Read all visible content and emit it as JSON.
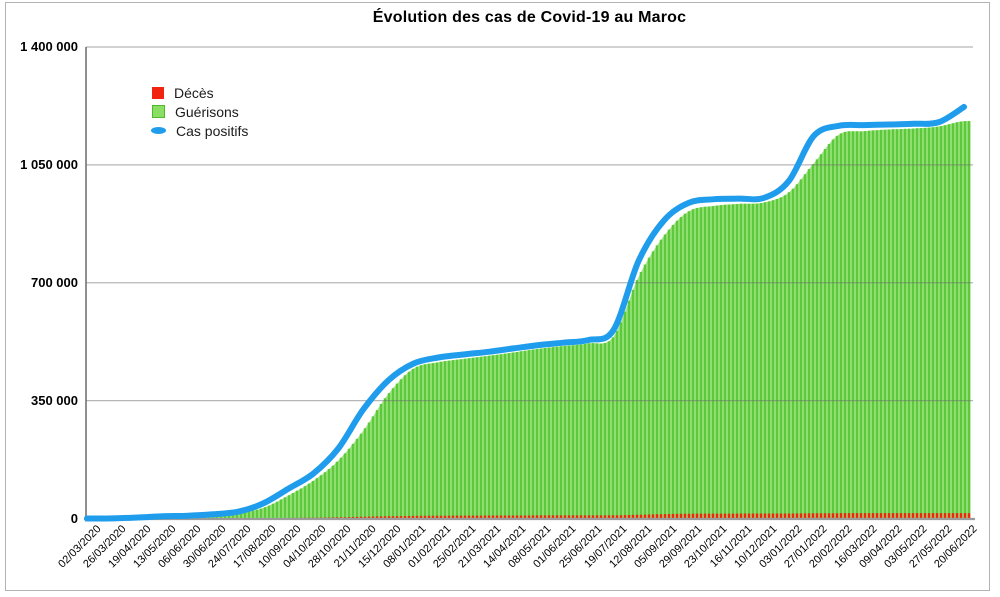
{
  "window": {
    "background": "#ffffff",
    "border_color": "#b3b3b3"
  },
  "chart_data": {
    "type": "combo",
    "title": "Évolution des cas de Covid-19 au Maroc",
    "categories": [
      "02/03/2020",
      "26/03/2020",
      "19/04/2020",
      "13/05/2020",
      "06/06/2020",
      "30/06/2020",
      "24/07/2020",
      "17/08/2020",
      "10/09/2020",
      "04/10/2020",
      "28/10/2020",
      "21/11/2020",
      "15/12/2020",
      "08/01/2021",
      "01/02/2021",
      "25/02/2021",
      "21/03/2021",
      "14/04/2021",
      "08/05/2021",
      "01/06/2021",
      "25/06/2021",
      "19/07/2021",
      "12/08/2021",
      "05/09/2021",
      "29/09/2021",
      "23/10/2021",
      "16/11/2021",
      "10/12/2021",
      "03/01/2022",
      "27/01/2022",
      "20/02/2022",
      "16/03/2022",
      "09/04/2022",
      "03/05/2022",
      "27/05/2022",
      "20/06/2022"
    ],
    "series": [
      {
        "name": "Décès",
        "type": "bar",
        "color": "#f1250f",
        "values": [
          0,
          3,
          140,
          190,
          210,
          230,
          310,
          700,
          1600,
          2400,
          3500,
          5300,
          6700,
          7700,
          8300,
          8600,
          8800,
          8950,
          9100,
          9200,
          9250,
          9500,
          11000,
          13000,
          14200,
          14600,
          14700,
          14800,
          14900,
          15400,
          15900,
          16000,
          16050,
          16060,
          16070,
          16100
        ]
      },
      {
        "name": "Guérisons",
        "type": "bar",
        "color": "#5bc93a",
        "color_light": "#a2e585",
        "legend_fill": "#8ade64",
        "legend_border": "#4eb82e",
        "values": [
          0,
          10,
          300,
          3300,
          7400,
          9500,
          16300,
          31500,
          68000,
          112000,
          172000,
          261000,
          370000,
          445000,
          464000,
          474000,
          483000,
          493000,
          504000,
          512000,
          520000,
          540000,
          718000,
          838000,
          912000,
          928000,
          934000,
          938000,
          968000,
          1055000,
          1140000,
          1150000,
          1155000,
          1158000,
          1164000,
          1180000
        ]
      },
      {
        "name": "Cas positifs",
        "type": "line",
        "color": "#1f9dec",
        "values": [
          2,
          300,
          2900,
          6600,
          8200,
          12600,
          20300,
          44800,
          88200,
          133300,
          207700,
          324000,
          410000,
          460000,
          478000,
          487000,
          495000,
          505000,
          515000,
          522000,
          530000,
          560000,
          765000,
          884000,
          937000,
          948000,
          950000,
          952000,
          1002000,
          1136000,
          1166000,
          1168000,
          1170000,
          1172000,
          1177000,
          1222000
        ]
      }
    ],
    "ylim": [
      0,
      1400000
    ],
    "yticks": [
      {
        "value": 0,
        "label": "0"
      },
      {
        "value": 350000,
        "label": "350 000"
      },
      {
        "value": 700000,
        "label": "700 000"
      },
      {
        "value": 1050000,
        "label": "1 050 000"
      },
      {
        "value": 1400000,
        "label": "1 400 000"
      }
    ],
    "grid": "horizontal",
    "legend_position": "top-left-inside",
    "axis_colors": {
      "grid": "#bcbcbc",
      "axis": "#8f8f8f",
      "baseline": "#9b9b9b"
    }
  }
}
